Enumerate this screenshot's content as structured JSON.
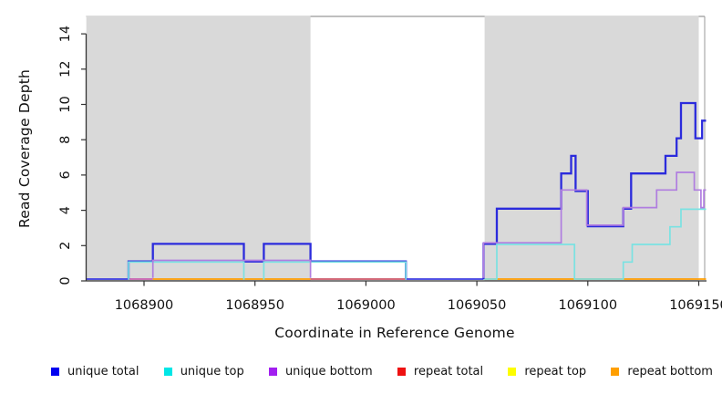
{
  "chart_data": {
    "type": "line",
    "subtype": "step-coverage",
    "title": "",
    "xlabel": "Coordinate in Reference Genome",
    "ylabel": "Read Coverage Depth",
    "x_ticks": [
      1068900,
      1068950,
      1069000,
      1069050,
      1069100,
      1069150
    ],
    "y_ticks": [
      0,
      2,
      4,
      6,
      8,
      10,
      12,
      14
    ],
    "xlim": [
      1068874,
      1069153.6
    ],
    "ylim": [
      0,
      15
    ],
    "grid": false,
    "legend_position": "bottom",
    "shade_color": "#d9d9d9",
    "shaded_regions": [
      {
        "from": 1068874,
        "to": 1068975
      },
      {
        "from": 1069053.5,
        "to": 1069150
      }
    ],
    "series": [
      {
        "name": "unique total",
        "color": "#2b2bdc",
        "width": 2.3,
        "offset": 0,
        "runs": [
          {
            "points": [
              [
                1068893,
                1
              ],
              [
                1068904,
                2
              ],
              [
                1068945,
                1
              ],
              [
                1068954,
                2
              ],
              [
                1068975,
                1
              ]
            ],
            "end": 1069018,
            "close": true
          },
          {
            "points": [
              [
                1069053,
                2
              ],
              [
                1069059,
                4
              ],
              [
                1069088,
                6
              ],
              [
                1069092.5,
                7
              ],
              [
                1069094.5,
                5
              ],
              [
                1069100,
                3
              ],
              [
                1069116,
                4
              ],
              [
                1069119.5,
                6
              ],
              [
                1069135,
                7
              ],
              [
                1069140,
                8
              ],
              [
                1069142,
                10
              ],
              [
                1069148.5,
                8
              ],
              [
                1069151.5,
                9
              ]
            ],
            "end": 1069153.4,
            "close": false
          }
        ]
      },
      {
        "name": "unique top",
        "color": "#7ae2e2",
        "width": 1.7,
        "offset": 0.6,
        "runs": [
          {
            "points": [
              [
                1068893,
                1
              ]
            ],
            "end": 1068945,
            "close": true
          },
          {
            "points": [
              [
                1068954,
                1
              ]
            ],
            "end": 1069018,
            "close": true
          },
          {
            "points": [
              [
                1069059,
                2
              ]
            ],
            "end": 1069094,
            "close": true
          },
          {
            "points": [
              [
                1069116,
                1
              ],
              [
                1069120,
                2
              ],
              [
                1069137,
                3
              ],
              [
                1069142,
                4
              ]
            ],
            "end": 1069153.4,
            "close": false
          }
        ]
      },
      {
        "name": "unique bottom",
        "color": "#b07de0",
        "width": 1.7,
        "offset": -1.2,
        "runs": [
          {
            "points": [
              [
                1068904,
                1
              ]
            ],
            "end": 1068975,
            "close": true
          },
          {
            "points": [
              [
                1069053,
                2
              ],
              [
                1069088,
                5
              ],
              [
                1069099.5,
                3
              ],
              [
                1069116,
                4
              ],
              [
                1069131,
                5
              ],
              [
                1069140,
                6
              ],
              [
                1069148,
                5
              ],
              [
                1069151,
                4
              ],
              [
                1069152.3,
                5
              ]
            ],
            "end": 1069153.4,
            "close": false
          }
        ]
      },
      {
        "name": "repeat total",
        "color": "#ee1111",
        "width": 1.7,
        "offset": 0,
        "constant_value": 0,
        "runs": []
      },
      {
        "name": "repeat top",
        "color": "#fdfd00",
        "width": 1.7,
        "offset": 0,
        "constant_value": 0,
        "runs": []
      },
      {
        "name": "repeat bottom",
        "color": "#ff9d00",
        "width": 1.7,
        "offset": 0,
        "constant_value": 0,
        "runs": []
      }
    ],
    "zero_line_segments": [
      {
        "from": 1068874,
        "to": 1068893,
        "color": "#3a3ae0"
      },
      {
        "from": 1068893,
        "to": 1068904,
        "color": "#c75fae"
      },
      {
        "from": 1068904,
        "to": 1068975,
        "color": "#ff9d00"
      },
      {
        "from": 1068975,
        "to": 1069018,
        "color": "#cc5566"
      },
      {
        "from": 1069018,
        "to": 1069053,
        "color": "#3a3ae0"
      },
      {
        "from": 1069053,
        "to": 1069059,
        "color": "#84d4c4"
      },
      {
        "from": 1069059,
        "to": 1069094,
        "color": "#ff9d00"
      },
      {
        "from": 1069094,
        "to": 1069116,
        "color": "#84d4c4"
      },
      {
        "from": 1069116,
        "to": 1069153.4,
        "color": "#ff9d00"
      }
    ]
  },
  "legend": [
    {
      "label": "unique total",
      "color": "#0000f0"
    },
    {
      "label": "unique top",
      "color": "#00e6e6"
    },
    {
      "label": "unique bottom",
      "color": "#a21ff0"
    },
    {
      "label": "repeat total",
      "color": "#ee1111"
    },
    {
      "label": "repeat top",
      "color": "#fdfd00"
    },
    {
      "label": "repeat bottom",
      "color": "#ff9f00"
    }
  ],
  "axes_style": {
    "axis_color": "#333333",
    "box_color": "#999999",
    "tick_label_color": "#111111"
  }
}
